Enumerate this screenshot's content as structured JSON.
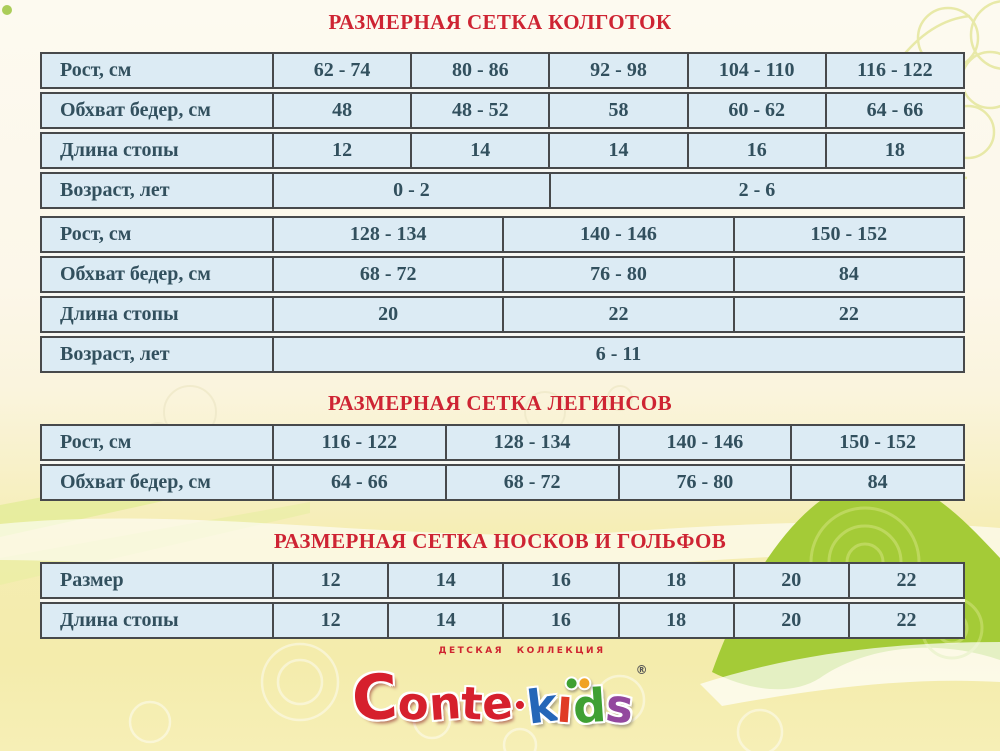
{
  "titles": {
    "tights": "РАЗМЕРНАЯ СЕТКА КОЛГОТОК",
    "leggings": "РАЗМЕРНАЯ СЕТКА ЛЕГИНСОВ",
    "socks": "РАЗМЕРНАЯ СЕТКА НОСКОВ И ГОЛЬФОВ"
  },
  "tables": [
    {
      "id": "tights-part-1",
      "rows": [
        {
          "cells": [
            {
              "text": "Рост, см"
            },
            {
              "text": "62 - 74"
            },
            {
              "text": "80 - 86"
            },
            {
              "text": "92 - 98"
            },
            {
              "text": "104 - 110"
            },
            {
              "text": "116 - 122"
            }
          ]
        },
        {
          "cells": [
            {
              "text": "Обхват бедер, см"
            },
            {
              "text": "48"
            },
            {
              "text": "48 - 52"
            },
            {
              "text": "58"
            },
            {
              "text": "60 - 62"
            },
            {
              "text": "64 - 66"
            }
          ]
        },
        {
          "cells": [
            {
              "text": "Длина стопы"
            },
            {
              "text": "12"
            },
            {
              "text": "14"
            },
            {
              "text": "14"
            },
            {
              "text": "16"
            },
            {
              "text": "18"
            }
          ]
        },
        {
          "cells": [
            {
              "text": "Возраст, лет"
            },
            {
              "text": "0 - 2",
              "span": 2
            },
            {
              "text": "2 - 6",
              "span": 3
            }
          ]
        }
      ]
    },
    {
      "id": "tights-part-2",
      "rows": [
        {
          "cells": [
            {
              "text": "Рост, см"
            },
            {
              "text": "128 - 134"
            },
            {
              "text": "140 - 146"
            },
            {
              "text": "150 - 152"
            }
          ]
        },
        {
          "cells": [
            {
              "text": "Обхват бедер, см"
            },
            {
              "text": "68 - 72"
            },
            {
              "text": "76 - 80"
            },
            {
              "text": "84"
            }
          ]
        },
        {
          "cells": [
            {
              "text": "Длина стопы"
            },
            {
              "text": "20"
            },
            {
              "text": "22"
            },
            {
              "text": "22"
            }
          ]
        },
        {
          "cells": [
            {
              "text": "Возраст, лет"
            },
            {
              "text": "6 - 11",
              "span": 3
            }
          ]
        }
      ]
    },
    {
      "id": "leggings",
      "rows": [
        {
          "cells": [
            {
              "text": "Рост, см"
            },
            {
              "text": "116 - 122"
            },
            {
              "text": "128 - 134"
            },
            {
              "text": "140 - 146"
            },
            {
              "text": "150 - 152"
            }
          ]
        },
        {
          "cells": [
            {
              "text": "Обхват бедер, см"
            },
            {
              "text": "64 - 66"
            },
            {
              "text": "68 - 72"
            },
            {
              "text": "76 - 80"
            },
            {
              "text": "84"
            }
          ]
        }
      ]
    },
    {
      "id": "socks-kneehighs",
      "rows": [
        {
          "cells": [
            {
              "text": "Размер"
            },
            {
              "text": "12"
            },
            {
              "text": "14"
            },
            {
              "text": "16"
            },
            {
              "text": "18"
            },
            {
              "text": "20"
            },
            {
              "text": "22"
            }
          ]
        },
        {
          "cells": [
            {
              "text": "Длина стопы"
            },
            {
              "text": "12"
            },
            {
              "text": "14"
            },
            {
              "text": "16"
            },
            {
              "text": "18"
            },
            {
              "text": "20"
            },
            {
              "text": "22"
            }
          ]
        }
      ]
    }
  ],
  "logo": {
    "tagline": "ДЕТСКАЯ КОЛЛЕКЦИЯ",
    "brand": "Conte",
    "separator": "•",
    "kids_letters": [
      {
        "ch": "k",
        "color": "#2566b8"
      },
      {
        "ch": "ı",
        "color": "#e03b25",
        "dot": "#3fa033"
      },
      {
        "ch": "d",
        "color": "#3fa033",
        "dot": "#f0a224"
      },
      {
        "ch": "s",
        "color": "#93489e"
      }
    ],
    "registered": "®",
    "brand_color": "#d6202d"
  },
  "colors": {
    "title_red": "#ce2433",
    "cell_background": "#dcebf4",
    "cell_text": "#32505e",
    "cell_border": "#47494b",
    "background_cream": "#fdf9ee",
    "background_yellow": "#f4ecac",
    "ribbon_green": "#a4cb37"
  }
}
